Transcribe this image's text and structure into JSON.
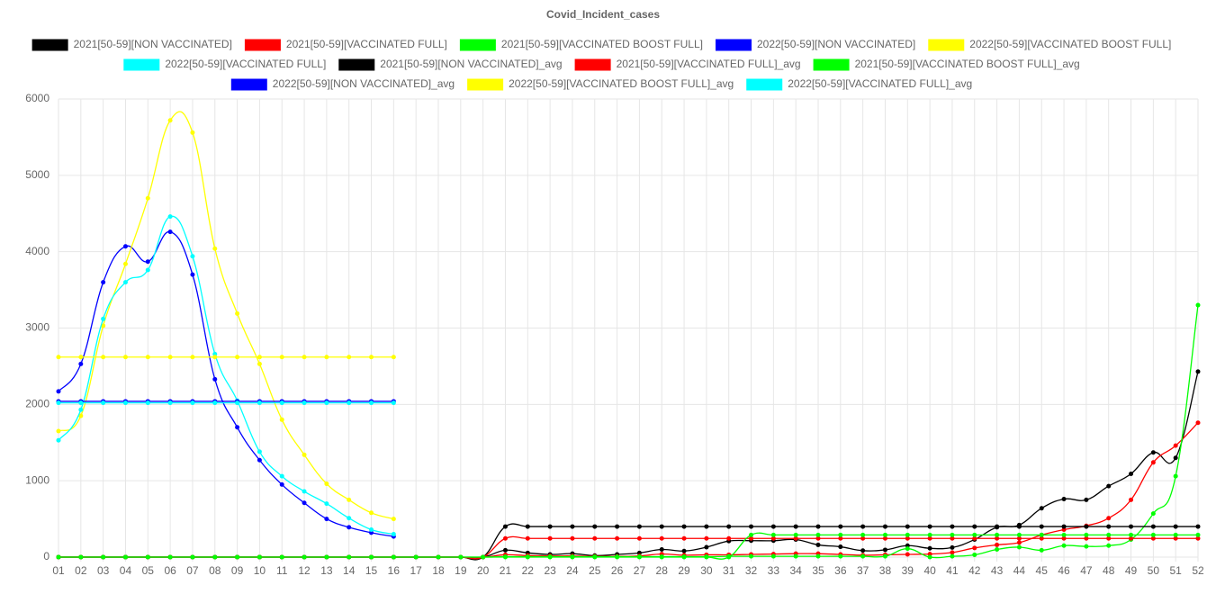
{
  "chart_data": {
    "type": "line",
    "title": "Covid_Incident_cases",
    "categories": [
      "01",
      "02",
      "03",
      "04",
      "05",
      "06",
      "07",
      "08",
      "09",
      "10",
      "11",
      "12",
      "13",
      "14",
      "15",
      "16",
      "17",
      "18",
      "19",
      "20",
      "21",
      "22",
      "23",
      "24",
      "25",
      "26",
      "27",
      "28",
      "29",
      "30",
      "31",
      "32",
      "33",
      "34",
      "35",
      "36",
      "37",
      "38",
      "39",
      "40",
      "41",
      "42",
      "43",
      "44",
      "45",
      "46",
      "47",
      "48",
      "49",
      "50",
      "51",
      "52"
    ],
    "ylim": [
      0,
      6000
    ],
    "yticks": [
      0,
      1000,
      2000,
      3000,
      4000,
      5000,
      6000
    ],
    "grid": true,
    "series": [
      {
        "name": "2021[50-59][NON VACCINATED]",
        "color": "#000000",
        "values": [
          0,
          0,
          0,
          0,
          0,
          0,
          0,
          0,
          0,
          0,
          0,
          0,
          0,
          0,
          0,
          0,
          0,
          0,
          0,
          0,
          90,
          55,
          35,
          45,
          20,
          35,
          55,
          100,
          80,
          130,
          210,
          215,
          215,
          230,
          160,
          135,
          85,
          95,
          150,
          115,
          125,
          230,
          390,
          420,
          640,
          760,
          750,
          930,
          1090,
          1370,
          1300,
          2430
        ]
      },
      {
        "name": "2021[50-59][VACCINATED FULL]",
        "color": "#ff0000",
        "values": [
          0,
          0,
          0,
          0,
          0,
          0,
          0,
          0,
          0,
          0,
          0,
          0,
          0,
          0,
          0,
          0,
          0,
          0,
          0,
          0,
          30,
          20,
          15,
          15,
          10,
          10,
          15,
          40,
          25,
          30,
          30,
          35,
          40,
          45,
          45,
          35,
          25,
          30,
          35,
          40,
          60,
          120,
          160,
          190,
          290,
          360,
          410,
          510,
          750,
          1240,
          1460,
          1760
        ]
      },
      {
        "name": "2021[50-59][VACCINATED BOOST FULL]",
        "color": "#00ff00",
        "values": [
          0,
          0,
          0,
          0,
          0,
          0,
          0,
          0,
          0,
          0,
          0,
          0,
          0,
          0,
          0,
          0,
          0,
          0,
          0,
          0,
          5,
          5,
          5,
          5,
          5,
          5,
          5,
          5,
          5,
          5,
          10,
          10,
          10,
          10,
          10,
          10,
          10,
          10,
          110,
          0,
          10,
          30,
          100,
          130,
          90,
          150,
          140,
          150,
          230,
          570,
          1060,
          3300
        ]
      },
      {
        "name": "2022[50-59][NON VACCINATED]",
        "color": "#0000ff",
        "values": [
          2170,
          2530,
          3600,
          4070,
          3870,
          4260,
          3700,
          2330,
          1700,
          1270,
          950,
          710,
          500,
          390,
          320,
          270,
          null,
          null,
          null,
          null,
          null,
          null,
          null,
          null,
          null,
          null,
          null,
          null,
          null,
          null,
          null,
          null,
          null,
          null,
          null,
          null,
          null,
          null,
          null,
          null,
          null,
          null,
          null,
          null,
          null,
          null,
          null,
          null,
          null,
          null,
          null,
          null
        ]
      },
      {
        "name": "2022[50-59][VACCINATED BOOST FULL]",
        "color": "#ffff00",
        "values": [
          1650,
          1850,
          3030,
          3840,
          4700,
          5720,
          5560,
          4040,
          3190,
          2530,
          1800,
          1340,
          960,
          750,
          580,
          500,
          null,
          null,
          null,
          null,
          null,
          null,
          null,
          null,
          null,
          null,
          null,
          null,
          null,
          null,
          null,
          null,
          null,
          null,
          null,
          null,
          null,
          null,
          null,
          null,
          null,
          null,
          null,
          null,
          null,
          null,
          null,
          null,
          null,
          null,
          null,
          null
        ]
      },
      {
        "name": "2022[50-59][VACCINATED FULL]",
        "color": "#00ffff",
        "values": [
          1530,
          1930,
          3120,
          3600,
          3760,
          4460,
          3940,
          2660,
          2050,
          1380,
          1060,
          860,
          700,
          510,
          360,
          300,
          null,
          null,
          null,
          null,
          null,
          null,
          null,
          null,
          null,
          null,
          null,
          null,
          null,
          null,
          null,
          null,
          null,
          null,
          null,
          null,
          null,
          null,
          null,
          null,
          null,
          null,
          null,
          null,
          null,
          null,
          null,
          null,
          null,
          null,
          null,
          null
        ]
      },
      {
        "name": "2021[50-59][NON VACCINATED]_avg",
        "color": "#000000",
        "values": [
          0,
          0,
          0,
          0,
          0,
          0,
          0,
          0,
          0,
          0,
          0,
          0,
          0,
          0,
          0,
          0,
          0,
          0,
          0,
          0,
          400,
          400,
          400,
          400,
          400,
          400,
          400,
          400,
          400,
          400,
          400,
          400,
          400,
          400,
          400,
          400,
          400,
          400,
          400,
          400,
          400,
          400,
          400,
          400,
          400,
          400,
          400,
          400,
          400,
          400,
          400,
          400
        ]
      },
      {
        "name": "2021[50-59][VACCINATED FULL]_avg",
        "color": "#ff0000",
        "values": [
          0,
          0,
          0,
          0,
          0,
          0,
          0,
          0,
          0,
          0,
          0,
          0,
          0,
          0,
          0,
          0,
          0,
          0,
          0,
          0,
          245,
          245,
          245,
          245,
          245,
          245,
          245,
          245,
          245,
          245,
          245,
          245,
          245,
          245,
          245,
          245,
          245,
          245,
          245,
          245,
          245,
          245,
          245,
          245,
          245,
          245,
          245,
          245,
          245,
          245,
          245,
          245
        ]
      },
      {
        "name": "2021[50-59][VACCINATED BOOST FULL]_avg",
        "color": "#00ff00",
        "values": [
          0,
          0,
          0,
          0,
          0,
          0,
          0,
          0,
          0,
          0,
          0,
          0,
          0,
          0,
          0,
          0,
          0,
          0,
          0,
          0,
          0,
          0,
          0,
          0,
          0,
          0,
          0,
          0,
          0,
          0,
          0,
          290,
          290,
          290,
          290,
          290,
          290,
          290,
          290,
          290,
          290,
          290,
          290,
          290,
          290,
          290,
          290,
          290,
          290,
          290,
          290,
          290
        ]
      },
      {
        "name": "2022[50-59][NON VACCINATED]_avg",
        "color": "#0000ff",
        "values": [
          2040,
          2040,
          2040,
          2040,
          2040,
          2040,
          2040,
          2040,
          2040,
          2040,
          2040,
          2040,
          2040,
          2040,
          2040,
          2040,
          null,
          null,
          null,
          null,
          null,
          null,
          null,
          null,
          null,
          null,
          null,
          null,
          null,
          null,
          null,
          null,
          null,
          null,
          null,
          null,
          null,
          null,
          null,
          null,
          null,
          null,
          null,
          null,
          null,
          null,
          null,
          null,
          null,
          null,
          null,
          null
        ]
      },
      {
        "name": "2022[50-59][VACCINATED BOOST FULL]_avg",
        "color": "#ffff00",
        "values": [
          2620,
          2620,
          2620,
          2620,
          2620,
          2620,
          2620,
          2620,
          2620,
          2620,
          2620,
          2620,
          2620,
          2620,
          2620,
          2620,
          null,
          null,
          null,
          null,
          null,
          null,
          null,
          null,
          null,
          null,
          null,
          null,
          null,
          null,
          null,
          null,
          null,
          null,
          null,
          null,
          null,
          null,
          null,
          null,
          null,
          null,
          null,
          null,
          null,
          null,
          null,
          null,
          null,
          null,
          null,
          null
        ]
      },
      {
        "name": "2022[50-59][VACCINATED FULL]_avg",
        "color": "#00ffff",
        "values": [
          2020,
          2020,
          2020,
          2020,
          2020,
          2020,
          2020,
          2020,
          2020,
          2020,
          2020,
          2020,
          2020,
          2020,
          2020,
          2020,
          null,
          null,
          null,
          null,
          null,
          null,
          null,
          null,
          null,
          null,
          null,
          null,
          null,
          null,
          null,
          null,
          null,
          null,
          null,
          null,
          null,
          null,
          null,
          null,
          null,
          null,
          null,
          null,
          null,
          null,
          null,
          null,
          null,
          null,
          null,
          null
        ]
      }
    ]
  }
}
